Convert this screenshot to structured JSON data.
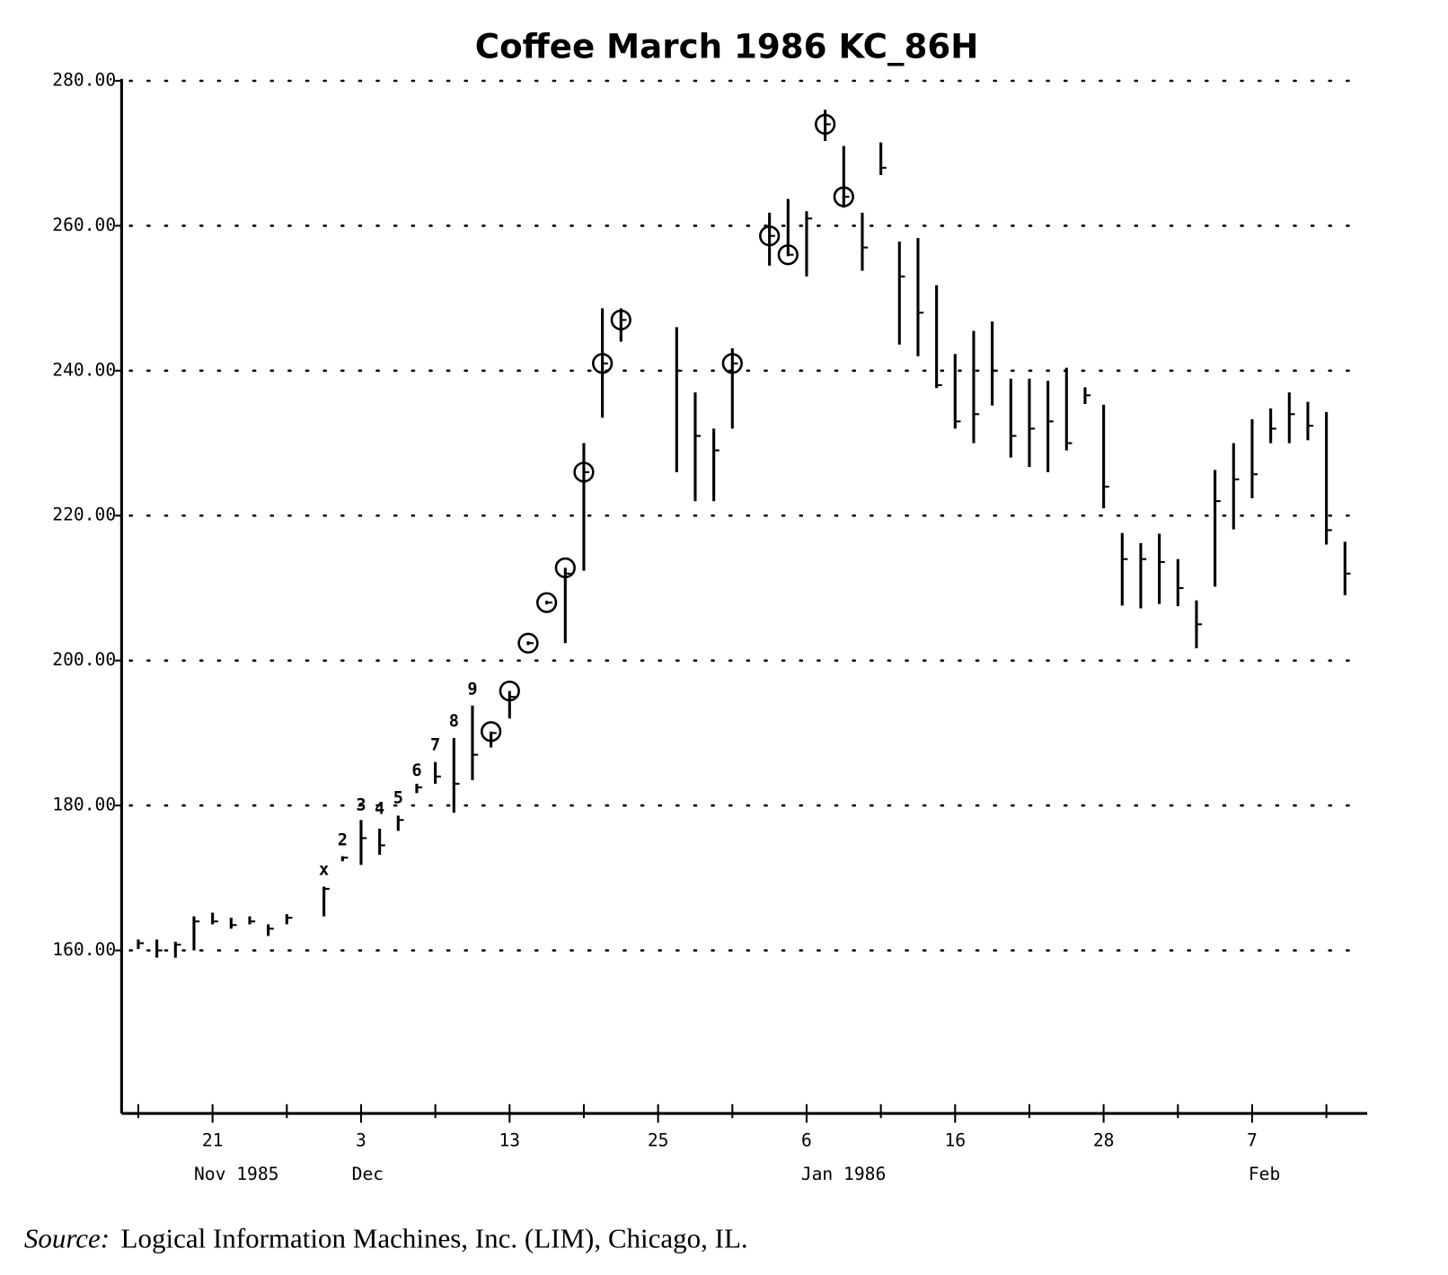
{
  "chart_data": {
    "type": "ohlc",
    "title": "Coffee March 1986 KC_86H",
    "source": {
      "prefix": "Source:",
      "text": "Logical Information Machines, Inc. (LIM), Chicago, IL."
    },
    "x": [
      0,
      1,
      2,
      3,
      4,
      5,
      6,
      7,
      8,
      10,
      11,
      12,
      13,
      14,
      15,
      16,
      17,
      18,
      19,
      20,
      21,
      22,
      23,
      24,
      25,
      26,
      29,
      30,
      31,
      32,
      34,
      35,
      36,
      37,
      38,
      39,
      40,
      41,
      42,
      43,
      44,
      45,
      46,
      47,
      48,
      49,
      50,
      51,
      52,
      53,
      54,
      55,
      56,
      57,
      58,
      59,
      60,
      61,
      62,
      63,
      64,
      65
    ],
    "high": [
      161.5,
      161.5,
      161.2,
      164.7,
      165.2,
      164.5,
      164.7,
      163.6,
      165,
      168.8,
      173,
      178,
      176.8,
      178.6,
      183,
      186,
      189.3,
      193.8,
      190.2,
      195.8,
      202.4,
      208,
      212.8,
      230,
      248.6,
      248.6,
      246,
      237,
      232,
      243.1,
      261.8,
      263.7,
      262,
      276,
      271,
      261.8,
      271.5,
      257.8,
      258.3,
      251.8,
      242.3,
      245.5,
      246.8,
      238.9,
      238.9,
      238.6,
      240.4,
      237.7,
      235.3,
      217.6,
      216.2,
      217.5,
      214,
      208.3,
      226.3,
      230,
      233.3,
      234.8,
      237,
      235.7,
      234.3,
      216.4
    ],
    "low": [
      160.2,
      159,
      159,
      160,
      163.6,
      163,
      163.6,
      162,
      163.6,
      164.7,
      172.3,
      171.8,
      173.2,
      176.5,
      181.7,
      183,
      179,
      183.5,
      188,
      192,
      202.4,
      208,
      202.4,
      212.4,
      233.5,
      244,
      226,
      222,
      222,
      232,
      254.5,
      255.8,
      253,
      271.7,
      262.5,
      253.8,
      267,
      243.6,
      242,
      237.6,
      232,
      230,
      235.2,
      228,
      226.7,
      226,
      229,
      235.4,
      221,
      207.6,
      207.2,
      207.8,
      207.5,
      201.7,
      210.2,
      218.1,
      222.4,
      230,
      230,
      230.4,
      216,
      209
    ],
    "close": [
      161,
      160,
      160.8,
      164,
      164,
      163.5,
      164,
      163,
      164.5,
      168.5,
      172.8,
      175.5,
      174.5,
      178,
      182.5,
      184,
      183,
      187,
      190,
      195,
      202.4,
      208,
      212,
      226,
      241,
      247,
      240,
      231,
      229,
      241,
      258.6,
      256,
      261,
      274,
      264,
      257,
      268,
      253,
      248,
      238,
      233,
      234,
      240,
      231,
      232,
      233,
      230,
      236.6,
      224,
      214,
      214,
      213.6,
      210,
      205,
      222,
      225,
      225.7,
      232,
      234,
      232.4,
      218,
      212
    ],
    "circles": [
      {
        "x": 19,
        "y": 190.2
      },
      {
        "x": 20,
        "y": 195.8
      },
      {
        "x": 21,
        "y": 202.4
      },
      {
        "x": 22,
        "y": 208
      },
      {
        "x": 23,
        "y": 212.8
      },
      {
        "x": 24,
        "y": 226
      },
      {
        "x": 25,
        "y": 241
      },
      {
        "x": 26,
        "y": 247
      },
      {
        "x": 32,
        "y": 241
      },
      {
        "x": 34,
        "y": 258.6
      },
      {
        "x": 35,
        "y": 256
      },
      {
        "x": 37,
        "y": 274
      },
      {
        "x": 38,
        "y": 264
      }
    ],
    "annotations": [
      {
        "x": 10,
        "y": 171.1,
        "label": "x"
      },
      {
        "x": 11,
        "y": 175.2,
        "label": "2"
      },
      {
        "x": 12,
        "y": 180,
        "label": "3"
      },
      {
        "x": 13,
        "y": 179.5,
        "label": "4"
      },
      {
        "x": 14,
        "y": 181,
        "label": "5"
      },
      {
        "x": 15,
        "y": 184.8,
        "label": "6"
      },
      {
        "x": 16,
        "y": 188.3,
        "label": "7"
      },
      {
        "x": 17,
        "y": 191.6,
        "label": "8"
      },
      {
        "x": 18,
        "y": 196,
        "label": "9"
      }
    ],
    "color": "#000000",
    "xlim": [
      -0.9,
      66.2
    ],
    "xticks": [
      {
        "value": 4,
        "label": "21"
      },
      {
        "value": 12,
        "label": "3"
      },
      {
        "value": 20,
        "label": "13"
      },
      {
        "value": 28,
        "label": "25"
      },
      {
        "value": 36,
        "label": "6"
      },
      {
        "value": 44,
        "label": "16"
      },
      {
        "value": 52,
        "label": "28"
      },
      {
        "value": 60,
        "label": "7"
      }
    ],
    "xminorticks": [
      0,
      8,
      16,
      24,
      32,
      40,
      48,
      56,
      64
    ],
    "x_group_labels": [
      {
        "value": 3,
        "label": "Nov 1985"
      },
      {
        "value": 11.5,
        "label": "Dec"
      },
      {
        "value": 35.7,
        "label": "Jan 1986"
      },
      {
        "value": 59.8,
        "label": "Feb"
      }
    ],
    "ylim": [
      137.5,
      280
    ],
    "yticks": [
      {
        "value": 160,
        "label": "160.00"
      },
      {
        "value": 180,
        "label": "180.00"
      },
      {
        "value": 200,
        "label": "200.00"
      },
      {
        "value": 220,
        "label": "220.00"
      },
      {
        "value": 240,
        "label": "240.00"
      },
      {
        "value": 260,
        "label": "260.00"
      },
      {
        "value": 280,
        "label": "280.00"
      }
    ],
    "grid": true
  }
}
